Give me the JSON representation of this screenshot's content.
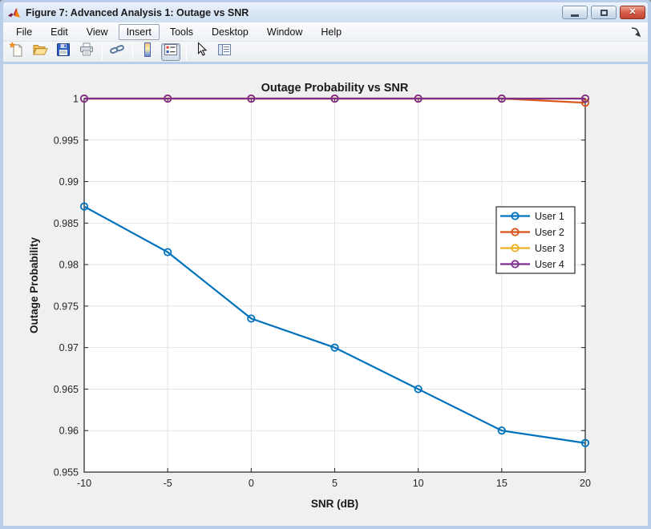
{
  "window": {
    "title": "Figure 7: Advanced Analysis 1: Outage vs SNR",
    "app_icon": "matlab-logo-icon",
    "controls": [
      {
        "name": "minimize-button",
        "icon": "minimize-icon"
      },
      {
        "name": "maximize-button",
        "icon": "maximize-icon"
      },
      {
        "name": "close-button",
        "icon": "close-icon"
      }
    ]
  },
  "menubar": {
    "items": [
      "File",
      "Edit",
      "View",
      "Insert",
      "Tools",
      "Desktop",
      "Window",
      "Help"
    ],
    "active_item": "Insert",
    "dock_icon": "dock-figure-arrow-icon"
  },
  "toolbar": {
    "items": [
      {
        "type": "icon",
        "name": "new-figure"
      },
      {
        "type": "icon",
        "name": "open-file"
      },
      {
        "type": "icon",
        "name": "save-figure"
      },
      {
        "type": "icon",
        "name": "print-figure"
      },
      {
        "type": "separator"
      },
      {
        "type": "icon",
        "name": "link-plot"
      },
      {
        "type": "separator"
      },
      {
        "type": "icon",
        "name": "insert-colorbar"
      },
      {
        "type": "icon",
        "name": "insert-legend",
        "pressed": true
      },
      {
        "type": "separator"
      },
      {
        "type": "icon",
        "name": "edit-plot"
      },
      {
        "type": "icon",
        "name": "property-inspector"
      }
    ]
  },
  "chart_data": {
    "type": "line",
    "title": "Outage Probability vs SNR",
    "xlabel": "SNR (dB)",
    "ylabel": "Outage Probability",
    "x": [
      -10,
      -5,
      0,
      5,
      10,
      15,
      20
    ],
    "xlim": [
      -10,
      20
    ],
    "ylim": [
      0.955,
      1
    ],
    "xticks": [
      -10,
      -5,
      0,
      5,
      10,
      15,
      20
    ],
    "xtick_labels": [
      "-10",
      "-5",
      "0",
      "5",
      "10",
      "15",
      "20"
    ],
    "yticks": [
      0.955,
      0.96,
      0.965,
      0.97,
      0.975,
      0.98,
      0.985,
      0.99,
      0.995,
      1
    ],
    "ytick_labels": [
      "0.955",
      "0.96",
      "0.965",
      "0.97",
      "0.975",
      "0.98",
      "0.985",
      "0.99",
      "0.995",
      "1"
    ],
    "grid": true,
    "legend_position": "inside-right-upper",
    "series": [
      {
        "name": "User 1",
        "color": "#0072BD",
        "marker": "o",
        "values": [
          0.987,
          0.9815,
          0.9735,
          0.97,
          0.965,
          0.96,
          0.9585
        ]
      },
      {
        "name": "User 2",
        "color": "#D95319",
        "marker": "o",
        "values": [
          1,
          1,
          1,
          1,
          1,
          1,
          0.9995
        ]
      },
      {
        "name": "User 3",
        "color": "#EDB120",
        "marker": "o",
        "values": [
          1,
          1,
          1,
          1,
          1,
          1,
          1
        ]
      },
      {
        "name": "User 4",
        "color": "#7E2F8E",
        "marker": "o",
        "values": [
          1,
          1,
          1,
          1,
          1,
          1,
          1
        ]
      }
    ]
  },
  "colors": {
    "window_border": "#b9cee8",
    "figure_background": "#f0f0f0",
    "axes_background": "#ffffff",
    "grid_color": "#e2e2e2",
    "axes_box_color": "#1f1f1f",
    "text_color": "#262626",
    "close_button": "#c04632"
  }
}
